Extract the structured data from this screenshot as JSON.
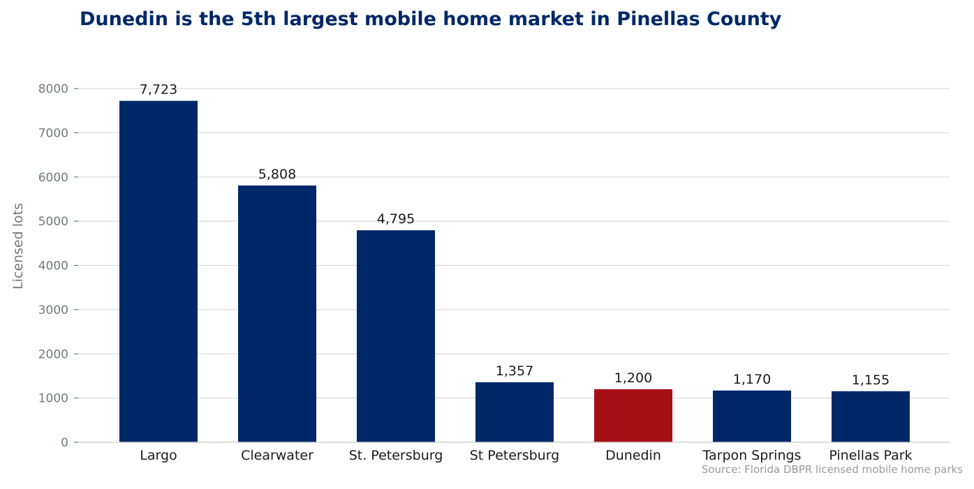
{
  "title": "Dunedin is the 5th largest mobile home market in Pinellas County",
  "source": "Source: Florida DBPR licensed mobile home parks",
  "colors": {
    "default_bar": "#002868",
    "highlight_bar": "#a51014",
    "title": "#002868"
  },
  "chart_data": {
    "type": "bar",
    "title": "Dunedin is the 5th largest mobile home market in Pinellas County",
    "xlabel": "",
    "ylabel": "Licensed lots",
    "ylim": [
      0,
      8300
    ],
    "yticks": [
      0,
      1000,
      2000,
      3000,
      4000,
      5000,
      6000,
      7000,
      8000
    ],
    "grid": true,
    "categories": [
      "Largo",
      "Clearwater",
      "St. Petersburg",
      "St Petersburg",
      "Dunedin",
      "Tarpon Springs",
      "Pinellas Park"
    ],
    "values": [
      7723,
      5808,
      4795,
      1357,
      1200,
      1170,
      1155
    ],
    "value_labels": [
      "7,723",
      "5,808",
      "4,795",
      "1,357",
      "1,200",
      "1,170",
      "1,155"
    ],
    "highlight": "Dunedin"
  }
}
